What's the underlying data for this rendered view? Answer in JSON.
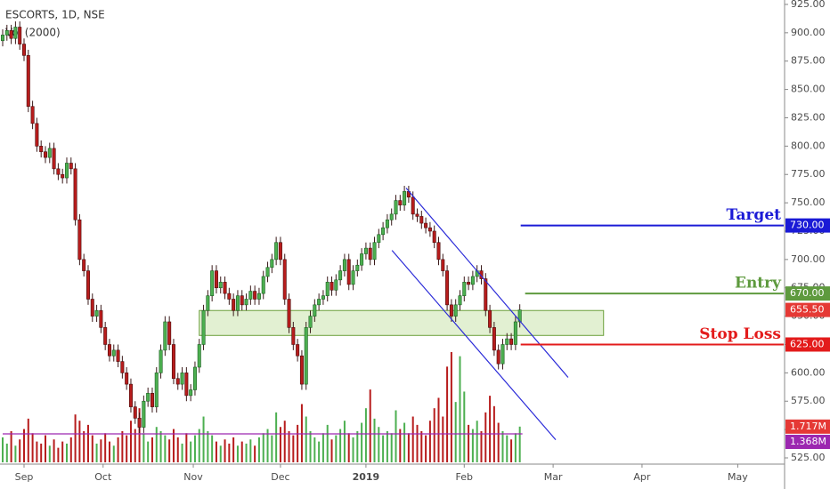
{
  "header": {
    "symbol": "ESCORTS, 1D, NSE",
    "indicator": "Vol (2000)"
  },
  "chart_data": {
    "type": "candlestick",
    "up_color": "#4caf50",
    "down_color": "#b71c1c",
    "open": [
      893,
      898,
      902,
      895,
      905,
      890,
      880,
      835,
      820,
      800,
      795,
      790,
      798,
      780,
      775,
      772,
      785,
      780,
      735,
      700,
      690,
      665,
      650,
      655,
      640,
      625,
      615,
      620,
      610,
      600,
      590,
      570,
      560,
      552,
      575,
      582,
      570,
      600,
      620,
      645,
      625,
      595,
      590,
      600,
      580,
      585,
      605,
      625,
      655,
      668,
      690,
      675,
      680,
      670,
      665,
      655,
      668,
      660,
      665,
      672,
      665,
      670,
      685,
      693,
      700,
      715,
      700,
      665,
      640,
      625,
      615,
      590,
      640,
      650,
      660,
      665,
      668,
      680,
      673,
      682,
      690,
      700,
      678,
      690,
      695,
      705,
      710,
      700,
      715,
      722,
      728,
      735,
      740,
      752,
      748,
      760,
      755,
      740,
      738,
      732,
      728,
      725,
      715,
      700,
      690,
      660,
      650,
      660,
      668,
      680,
      678,
      685,
      690,
      683,
      655,
      640,
      620,
      608,
      625,
      630,
      625,
      645
    ],
    "high": [
      903,
      907,
      907,
      910,
      910,
      895,
      885,
      840,
      825,
      805,
      800,
      803,
      803,
      785,
      780,
      790,
      790,
      785,
      740,
      705,
      695,
      670,
      660,
      660,
      645,
      630,
      625,
      625,
      615,
      605,
      595,
      575,
      565,
      580,
      587,
      587,
      605,
      625,
      650,
      650,
      630,
      600,
      605,
      605,
      590,
      610,
      630,
      660,
      673,
      695,
      695,
      685,
      685,
      675,
      670,
      673,
      673,
      670,
      677,
      677,
      675,
      690,
      698,
      705,
      720,
      720,
      705,
      670,
      645,
      630,
      620,
      645,
      655,
      665,
      670,
      673,
      685,
      685,
      687,
      695,
      705,
      705,
      695,
      700,
      710,
      715,
      715,
      720,
      727,
      733,
      740,
      745,
      757,
      757,
      765,
      765,
      760,
      745,
      743,
      737,
      733,
      730,
      720,
      705,
      695,
      665,
      665,
      673,
      685,
      685,
      690,
      695,
      695,
      688,
      660,
      645,
      625,
      630,
      635,
      635,
      650,
      660.5
    ],
    "low": [
      888,
      893,
      890,
      890,
      885,
      875,
      830,
      815,
      795,
      790,
      785,
      785,
      775,
      770,
      767,
      767,
      775,
      730,
      695,
      685,
      660,
      645,
      645,
      635,
      620,
      610,
      610,
      605,
      595,
      585,
      565,
      555,
      547,
      547,
      570,
      565,
      565,
      595,
      615,
      620,
      590,
      585,
      585,
      575,
      575,
      580,
      600,
      620,
      650,
      663,
      670,
      670,
      665,
      660,
      650,
      650,
      655,
      655,
      660,
      660,
      660,
      665,
      680,
      688,
      695,
      695,
      660,
      635,
      620,
      610,
      585,
      585,
      635,
      645,
      655,
      660,
      663,
      668,
      668,
      677,
      685,
      673,
      673,
      685,
      690,
      700,
      695,
      695,
      710,
      717,
      723,
      730,
      735,
      743,
      743,
      750,
      735,
      733,
      727,
      723,
      720,
      710,
      695,
      685,
      655,
      645,
      645,
      655,
      663,
      673,
      673,
      680,
      678,
      650,
      635,
      615,
      603,
      603,
      620,
      620,
      620,
      640
    ],
    "close": [
      898,
      902,
      895,
      905,
      890,
      880,
      835,
      820,
      800,
      795,
      790,
      798,
      780,
      775,
      772,
      785,
      780,
      735,
      700,
      690,
      665,
      650,
      655,
      640,
      625,
      615,
      620,
      610,
      600,
      590,
      570,
      560,
      552,
      575,
      582,
      570,
      600,
      620,
      645,
      625,
      595,
      590,
      600,
      580,
      585,
      605,
      625,
      655,
      668,
      690,
      675,
      680,
      670,
      665,
      655,
      668,
      660,
      665,
      672,
      665,
      670,
      685,
      693,
      700,
      715,
      700,
      665,
      640,
      625,
      615,
      590,
      640,
      650,
      660,
      665,
      668,
      680,
      673,
      682,
      690,
      700,
      678,
      690,
      695,
      705,
      710,
      700,
      715,
      722,
      728,
      735,
      740,
      752,
      748,
      760,
      755,
      740,
      738,
      732,
      728,
      725,
      715,
      700,
      690,
      660,
      650,
      660,
      668,
      680,
      678,
      685,
      690,
      683,
      655,
      640,
      620,
      608,
      625,
      630,
      625,
      645,
      655.5
    ],
    "volume": [
      1.2,
      0.9,
      1.5,
      0.8,
      1.1,
      1.6,
      2.1,
      1.4,
      1.0,
      0.9,
      1.3,
      0.8,
      1.1,
      0.7,
      1.0,
      0.9,
      1.2,
      2.3,
      2.0,
      1.5,
      1.8,
      1.3,
      0.9,
      1.1,
      1.4,
      1.0,
      0.8,
      1.2,
      1.5,
      1.3,
      2.0,
      1.6,
      2.6,
      1.4,
      1.0,
      1.2,
      1.7,
      1.5,
      1.3,
      1.1,
      1.6,
      1.2,
      0.9,
      1.4,
      1.0,
      1.3,
      1.6,
      2.2,
      1.5,
      1.3,
      1.0,
      0.8,
      1.1,
      0.9,
      1.2,
      0.8,
      1.0,
      0.9,
      1.1,
      0.8,
      1.2,
      1.4,
      1.6,
      1.3,
      2.4,
      1.7,
      2.0,
      1.5,
      1.3,
      1.8,
      2.8,
      2.2,
      1.5,
      1.2,
      1.0,
      1.4,
      1.8,
      1.1,
      1.3,
      1.6,
      2.0,
      1.4,
      1.2,
      1.5,
      1.9,
      2.6,
      3.5,
      2.1,
      1.7,
      1.3,
      1.5,
      1.4,
      2.5,
      1.6,
      1.9,
      1.4,
      2.2,
      1.8,
      1.5,
      1.3,
      2.0,
      2.6,
      3.1,
      2.2,
      4.6,
      5.3,
      2.9,
      5.1,
      3.4,
      1.8,
      1.6,
      2.0,
      1.5,
      2.4,
      3.2,
      2.7,
      1.9,
      1.5,
      1.3,
      1.1,
      1.4,
      1.717
    ],
    "volume_ylim": [
      0,
      6
    ],
    "volume_last_label": "1.717M",
    "volume_average": {
      "value": 1.368,
      "label": "1.368M",
      "color": "#9c27b0"
    },
    "last_price_label": "655.50",
    "xlim": [
      0,
      194
    ],
    "xticks": [
      {
        "value": 5,
        "label": "Sep"
      },
      {
        "value": 23.5,
        "label": "Oct"
      },
      {
        "value": 44.6,
        "label": "Nov"
      },
      {
        "value": 65,
        "label": "Dec"
      },
      {
        "value": 85,
        "label": "2019"
      },
      {
        "value": 108,
        "label": "Feb"
      },
      {
        "value": 128.8,
        "label": "Mar"
      },
      {
        "value": 149.6,
        "label": "Apr"
      },
      {
        "value": 172,
        "label": "May"
      }
    ],
    "ylim": [
      519.5,
      928.9
    ],
    "yticks": [
      {
        "value": 525,
        "label": "525.00"
      },
      {
        "value": 550,
        "label": "550.00"
      },
      {
        "value": 575,
        "label": "575.00"
      },
      {
        "value": 600,
        "label": "600.00"
      },
      {
        "value": 625,
        "label": "625.00"
      },
      {
        "value": 650,
        "label": "650.00"
      },
      {
        "value": 675,
        "label": "675.00"
      },
      {
        "value": 700,
        "label": "700.00"
      },
      {
        "value": 725,
        "label": "725.00"
      },
      {
        "value": 750,
        "label": "750.00"
      },
      {
        "value": 775,
        "label": "775.00"
      },
      {
        "value": 800,
        "label": "800.00"
      },
      {
        "value": 825,
        "label": "825.00"
      },
      {
        "value": 850,
        "label": "850.00"
      },
      {
        "value": 875,
        "label": "875.00"
      },
      {
        "value": 900,
        "label": "900.00"
      },
      {
        "value": 925,
        "label": "925.00"
      }
    ],
    "levels": [
      {
        "name": "Target",
        "value": 730,
        "label": "730.00",
        "color": "#1a1ad6"
      },
      {
        "name": "Entry",
        "value": 670,
        "label": "670.00",
        "color": "#5e9a3e"
      },
      {
        "name": "Stop Loss",
        "value": 625,
        "label": "625.00",
        "color": "#e31b1b"
      }
    ],
    "zone": {
      "x": [
        46,
        140.6
      ],
      "y": [
        633,
        655
      ]
    },
    "channel": [
      {
        "x": [
          94.4,
          132.3
        ],
        "y": [
          763,
          596
        ]
      },
      {
        "x": [
          91.1,
          129.4
        ],
        "y": [
          708,
          541
        ]
      }
    ]
  }
}
